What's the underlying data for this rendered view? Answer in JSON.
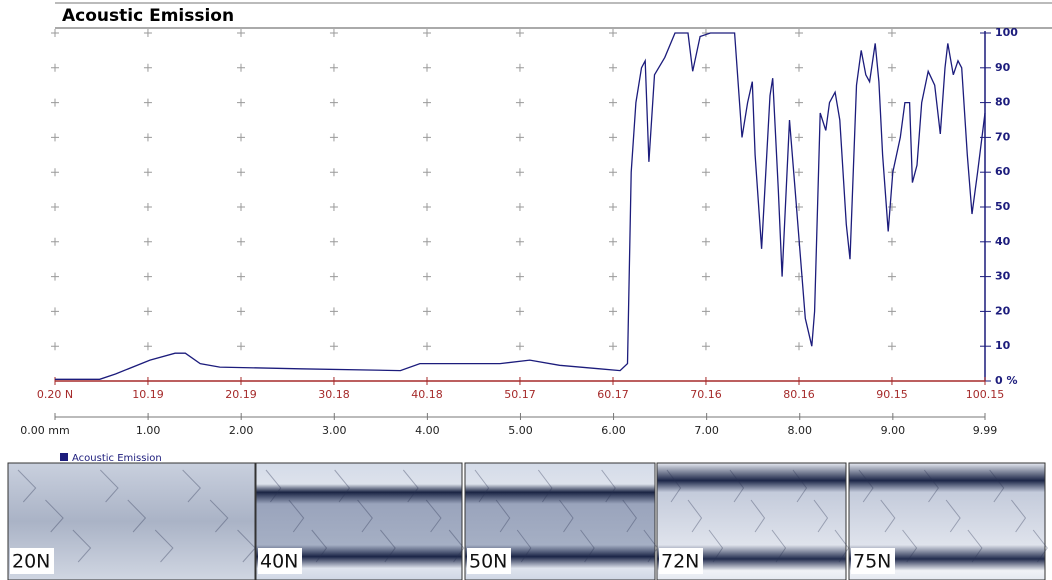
{
  "chart_data": {
    "type": "line",
    "title": "Acoustic Emission",
    "x": [
      0,
      0.48,
      0.65,
      1.02,
      1.29,
      1.4,
      1.56,
      1.77,
      2.63,
      3.71,
      3.92,
      4.78,
      5.1,
      5.42,
      5.85,
      6.07,
      6.15,
      6.19,
      6.24,
      6.3,
      6.34,
      6.38,
      6.44,
      6.55,
      6.66,
      6.8,
      6.85,
      6.93,
      7.04,
      7.3,
      7.38,
      7.44,
      7.49,
      7.52,
      7.59,
      7.68,
      7.71,
      7.77,
      7.81,
      7.89,
      7.95,
      8.06,
      8.13,
      8.16,
      8.22,
      8.28,
      8.32,
      8.38,
      8.43,
      8.5,
      8.54,
      8.61,
      8.66,
      8.71,
      8.75,
      8.81,
      8.85,
      8.89,
      8.95,
      9.0,
      9.08,
      9.13,
      9.18,
      9.21,
      9.26,
      9.31,
      9.38,
      9.45,
      9.51,
      9.56,
      9.59,
      9.65,
      9.7,
      9.74,
      9.8,
      9.85,
      9.91,
      9.99
    ],
    "series": [
      {
        "name": "Acoustic Emission",
        "color": "#1c1c7c",
        "values": [
          0.5,
          0.5,
          2,
          6,
          8,
          8,
          5,
          4,
          3.5,
          3,
          5,
          5,
          6,
          4.5,
          3.5,
          3,
          5,
          60,
          80,
          90,
          92,
          63,
          88,
          93,
          100,
          100,
          89,
          99,
          100,
          100,
          70,
          80,
          86,
          65,
          38,
          82,
          87,
          55,
          30,
          75,
          55,
          18,
          10,
          20,
          77,
          72,
          80,
          83,
          75,
          45,
          35,
          85,
          95,
          88,
          86,
          97,
          86,
          65,
          43,
          60,
          70,
          80,
          80,
          57,
          62,
          80,
          89,
          85,
          71,
          90,
          97,
          88,
          92,
          90,
          65,
          48,
          60,
          77
        ]
      }
    ],
    "xlim": [
      0,
      9.99
    ],
    "xticks": [
      {
        "value": 0,
        "label": "0.00 mm"
      },
      {
        "value": 1,
        "label": "1.00"
      },
      {
        "value": 2,
        "label": "2.00"
      },
      {
        "value": 3,
        "label": "3.00"
      },
      {
        "value": 4,
        "label": "4.00"
      },
      {
        "value": 5,
        "label": "5.00"
      },
      {
        "value": 6,
        "label": "6.00"
      },
      {
        "value": 7,
        "label": "7.00"
      },
      {
        "value": 8,
        "label": "8.00"
      },
      {
        "value": 9,
        "label": "9.00"
      },
      9.99
    ],
    "x2lim": [
      0.2,
      100.15
    ],
    "x2ticks": [
      {
        "value": 0.2,
        "label": "0.20 N"
      },
      10.19,
      20.19,
      30.18,
      40.18,
      50.17,
      60.17,
      70.16,
      80.16,
      90.15,
      100.15
    ],
    "ylim": [
      0,
      100
    ],
    "yticks": [
      {
        "value": 0,
        "label": "0 %"
      },
      10,
      20,
      30,
      40,
      50,
      60,
      70,
      80,
      90,
      100
    ],
    "y_axis_side": "right",
    "grid": true
  },
  "images": [
    {
      "label": "20N"
    },
    {
      "label": "40N"
    },
    {
      "label": "50N"
    },
    {
      "label": "72N"
    },
    {
      "label": "75N"
    }
  ]
}
